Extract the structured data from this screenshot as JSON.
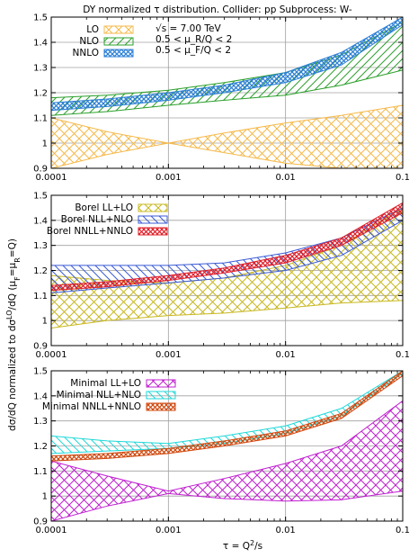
{
  "title": "DY normalized τ distribution.   Collider: pp   Subprocess: W-",
  "xlabel": "τ = Q²/s",
  "ylabel": "dσ/dQ  normalized to  dσ^LO/dQ (μ_F=μ_R=Q)",
  "annotations": [
    "√s = 7.00 TeV",
    "0.5 < μ_R/Q < 2",
    "0.5 < μ_F/Q < 2"
  ],
  "x_ticks": [
    0.0001,
    0.001,
    0.01,
    0.1
  ],
  "x_tick_labels": [
    "0.0001",
    "0.001",
    "0.01",
    "0.1"
  ],
  "y_ticks": [
    0.9,
    1,
    1.1,
    1.2,
    1.3,
    1.4,
    1.5
  ],
  "y_tick_labels": [
    "0.9",
    "1",
    "1.1",
    "1.2",
    "1.3",
    "1.4",
    "1.5"
  ],
  "colors": {
    "LO": "#f5b94a",
    "NLO": "#2ca02c",
    "NNLO": "#2b7fd6",
    "Borel LL+LO": "#c8b820",
    "Borel NLL+NLO": "#3b5bd6",
    "Borel NNLL+NNLO": "#e0202a",
    "Minimal LL+LO": "#c020d0",
    "Minimal NLL+NLO": "#20d8d8",
    "Minimal NNLL+NNLO": "#d04a10"
  },
  "chart_data": [
    {
      "type": "area",
      "xscale": "log",
      "xlim": [
        0.0001,
        0.1
      ],
      "ylim": [
        0.9,
        1.5
      ],
      "grid": true,
      "legend": "top-left",
      "x": [
        0.0001,
        0.0003,
        0.001,
        0.003,
        0.01,
        0.03,
        0.1
      ],
      "series": [
        {
          "name": "LO",
          "lower": [
            0.9,
            0.955,
            1.0,
            0.962,
            0.92,
            0.9,
            0.88
          ],
          "upper": [
            1.1,
            1.045,
            1.0,
            1.04,
            1.08,
            1.11,
            1.15
          ]
        },
        {
          "name": "NLO",
          "lower": [
            1.11,
            1.125,
            1.15,
            1.17,
            1.19,
            1.23,
            1.29
          ],
          "upper": [
            1.18,
            1.19,
            1.21,
            1.24,
            1.28,
            1.35,
            1.48
          ]
        },
        {
          "name": "NNLO",
          "lower": [
            1.13,
            1.145,
            1.17,
            1.2,
            1.24,
            1.31,
            1.47
          ],
          "upper": [
            1.16,
            1.175,
            1.2,
            1.23,
            1.28,
            1.36,
            1.5
          ]
        }
      ]
    },
    {
      "type": "area",
      "xscale": "log",
      "xlim": [
        0.0001,
        0.1
      ],
      "ylim": [
        0.9,
        1.5
      ],
      "grid": true,
      "legend": "top-left",
      "x": [
        0.0001,
        0.0003,
        0.001,
        0.003,
        0.01,
        0.03,
        0.1
      ],
      "series": [
        {
          "name": "Borel LL+LO",
          "lower": [
            0.97,
            1.0,
            1.02,
            1.03,
            1.05,
            1.07,
            1.08
          ],
          "upper": [
            1.18,
            1.16,
            1.15,
            1.17,
            1.22,
            1.3,
            1.45
          ]
        },
        {
          "name": "Borel NLL+NLO",
          "lower": [
            1.11,
            1.13,
            1.15,
            1.17,
            1.2,
            1.26,
            1.4
          ],
          "upper": [
            1.22,
            1.22,
            1.22,
            1.23,
            1.27,
            1.33,
            1.45
          ]
        },
        {
          "name": "Borel NNLL+NNLO",
          "lower": [
            1.12,
            1.135,
            1.16,
            1.19,
            1.23,
            1.3,
            1.43
          ],
          "upper": [
            1.14,
            1.155,
            1.18,
            1.21,
            1.26,
            1.33,
            1.47
          ]
        }
      ]
    },
    {
      "type": "area",
      "xscale": "log",
      "xlim": [
        0.0001,
        0.1
      ],
      "ylim": [
        0.9,
        1.5
      ],
      "grid": true,
      "legend": "top-left",
      "x": [
        0.0001,
        0.0003,
        0.001,
        0.003,
        0.01,
        0.03,
        0.1
      ],
      "series": [
        {
          "name": "Minimal LL+LO",
          "lower": [
            0.9,
            0.96,
            1.01,
            0.99,
            0.98,
            0.985,
            1.02
          ],
          "upper": [
            1.14,
            1.08,
            1.02,
            1.07,
            1.13,
            1.2,
            1.38
          ]
        },
        {
          "name": "Minimal NLL+NLO",
          "lower": [
            1.17,
            1.18,
            1.19,
            1.21,
            1.25,
            1.32,
            1.49
          ],
          "upper": [
            1.24,
            1.22,
            1.21,
            1.24,
            1.28,
            1.35,
            1.5
          ]
        },
        {
          "name": "Minimal NNLL+NNLO",
          "lower": [
            1.14,
            1.15,
            1.17,
            1.2,
            1.24,
            1.31,
            1.48
          ],
          "upper": [
            1.16,
            1.17,
            1.19,
            1.22,
            1.26,
            1.33,
            1.5
          ]
        }
      ]
    }
  ]
}
